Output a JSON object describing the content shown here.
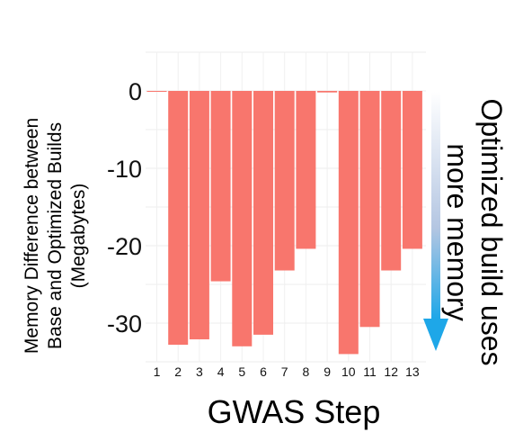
{
  "chart_data": {
    "type": "bar",
    "categories": [
      "1",
      "2",
      "3",
      "4",
      "5",
      "6",
      "7",
      "8",
      "9",
      "10",
      "11",
      "12",
      "13"
    ],
    "values": [
      0,
      -32.8,
      -32.1,
      -24.6,
      -33.0,
      -31.5,
      -23.2,
      -20.4,
      -0.2,
      -34.0,
      -30.5,
      -23.2,
      -20.4
    ],
    "xlabel": "GWAS Step",
    "ylabel_lines": [
      "Memory Difference between",
      "Base and Optimized Builds",
      "(Megabytes)"
    ],
    "yticks": [
      0,
      -10,
      -20,
      -30
    ],
    "ylim": [
      -35,
      5
    ],
    "grid": true,
    "bar_color": "#f8766d",
    "annotation": {
      "lines": [
        "Optimized build uses",
        "more memory"
      ],
      "arrow_color_top": "#ffffff",
      "arrow_color_bottom": "#1ea7e8"
    }
  }
}
